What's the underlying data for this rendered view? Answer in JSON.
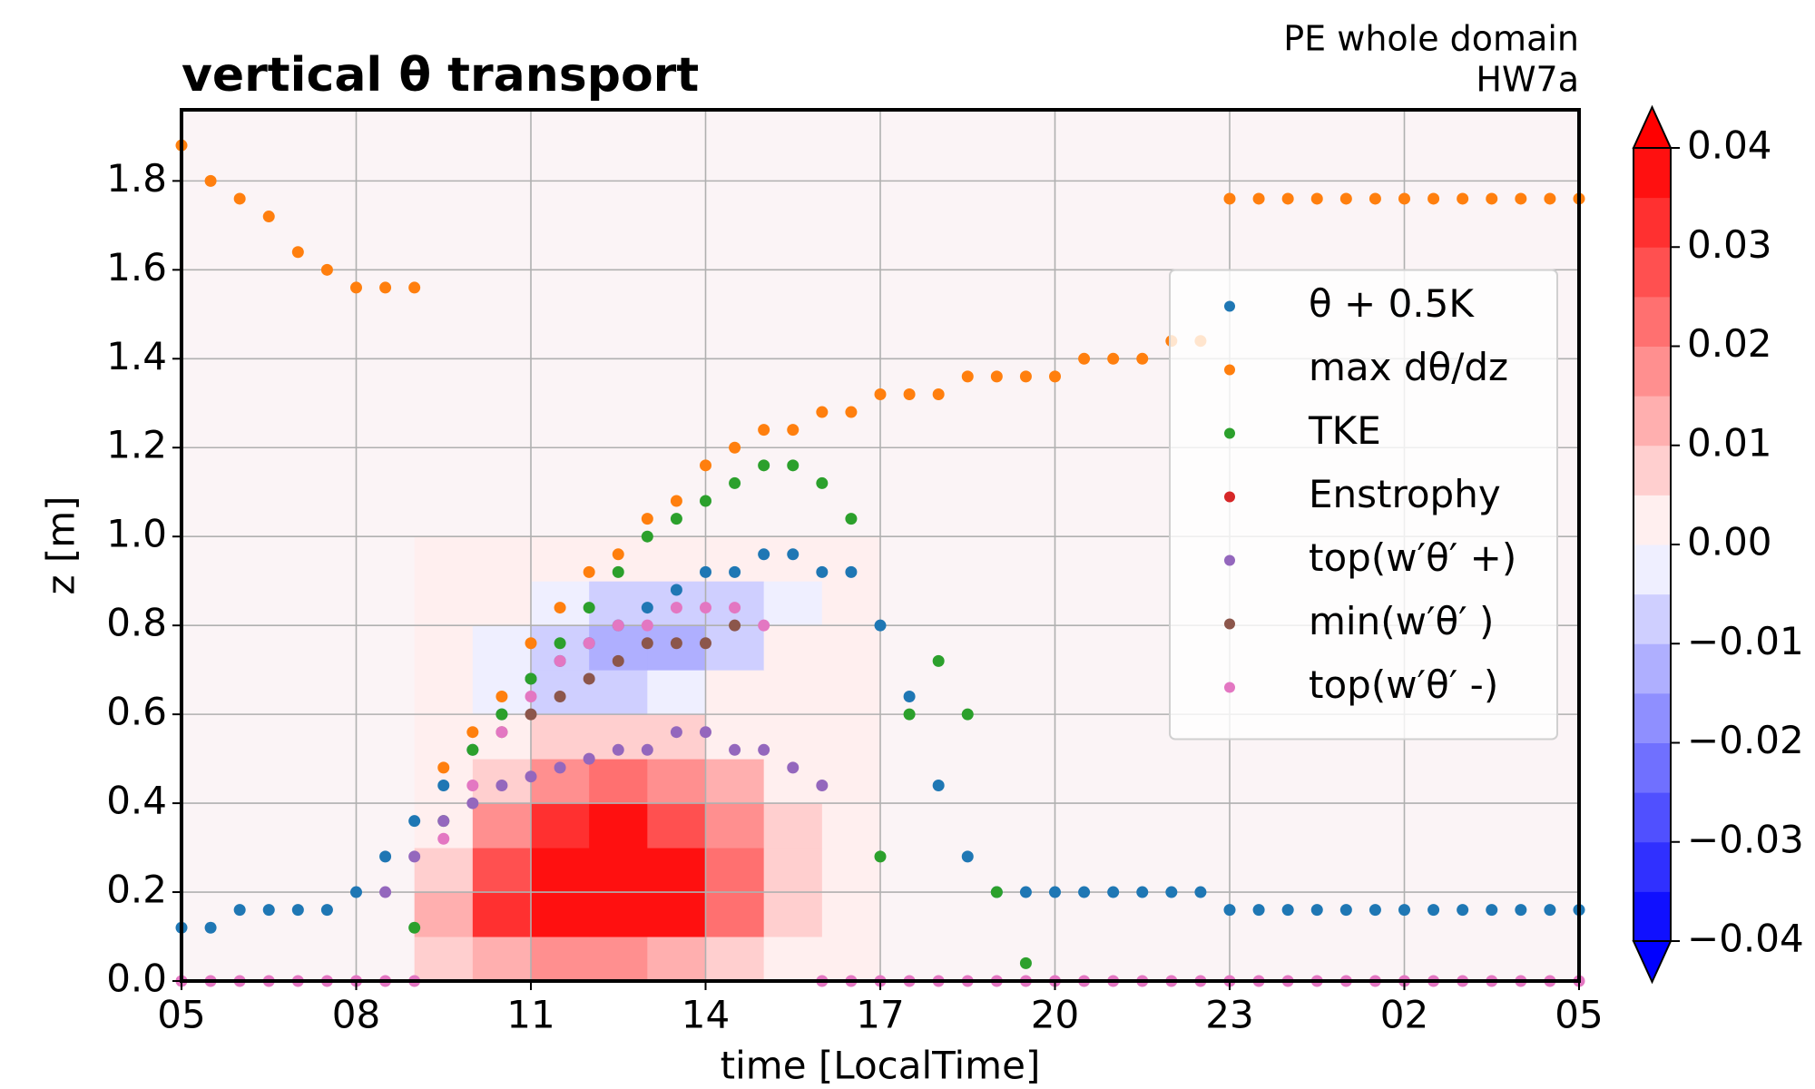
{
  "chart_data": {
    "type": "scatter",
    "title": "vertical θ transport",
    "subtitle": [
      "PE whole domain",
      "HW7a"
    ],
    "x_label": "time [LocalTime]",
    "y_label": "z [m]",
    "xlim": [
      5,
      29
    ],
    "ylim": [
      0,
      1.96
    ],
    "xticks": [
      {
        "value": 5,
        "label": "05"
      },
      {
        "value": 8,
        "label": "08"
      },
      11,
      14,
      17,
      20,
      23,
      {
        "value": 26,
        "label": "02"
      },
      {
        "value": 29,
        "label": "05"
      }
    ],
    "yticks": [
      {
        "value": 0,
        "label": "0.0"
      },
      0.2,
      0.4,
      0.6,
      0.8,
      {
        "value": 1,
        "label": "1.0"
      },
      1.2,
      1.4,
      1.6,
      1.8
    ],
    "grid": true,
    "legend": "center right",
    "x": [
      5,
      5.5,
      6,
      6.5,
      7,
      7.5,
      8,
      8.5,
      9,
      9.5,
      10,
      10.5,
      11,
      11.5,
      12,
      12.5,
      13,
      13.5,
      14,
      14.5,
      15,
      15.5,
      16,
      16.5,
      17,
      17.5,
      18,
      18.5,
      19,
      19.5,
      20,
      20.5,
      21,
      21.5,
      22,
      22.5,
      23,
      23.5,
      24,
      24.5,
      25,
      25.5,
      26,
      26.5,
      27,
      27.5,
      28,
      28.5,
      29
    ],
    "series": [
      {
        "name": "θ + 0.5K",
        "color": "#1f77b4",
        "values": [
          0.12,
          0.12,
          0.16,
          0.16,
          0.16,
          0.16,
          0.2,
          0.28,
          0.36,
          0.44,
          0.52,
          0.6,
          0.68,
          0.72,
          0.76,
          0.8,
          0.84,
          0.88,
          0.92,
          0.92,
          0.96,
          0.96,
          0.92,
          0.92,
          0.8,
          0.64,
          0.44,
          0.28,
          0.2,
          0.2,
          0.2,
          0.2,
          0.2,
          0.2,
          0.2,
          0.2,
          0.16,
          0.16,
          0.16,
          0.16,
          0.16,
          0.16,
          0.16,
          0.16,
          0.16,
          0.16,
          0.16,
          0.16,
          0.16
        ]
      },
      {
        "name": "max dθ/dz",
        "color": "#ff7f0e",
        "values": [
          1.88,
          1.8,
          1.76,
          1.72,
          1.64,
          1.6,
          1.56,
          1.56,
          1.56,
          0.48,
          0.56,
          0.64,
          0.76,
          0.84,
          0.92,
          0.96,
          1.04,
          1.08,
          1.16,
          1.2,
          1.24,
          1.24,
          1.28,
          1.28,
          1.32,
          1.32,
          1.32,
          1.36,
          1.36,
          1.36,
          1.36,
          1.4,
          1.4,
          1.4,
          1.44,
          1.44,
          1.76,
          1.76,
          1.76,
          1.76,
          1.76,
          1.76,
          1.76,
          1.76,
          1.76,
          1.76,
          1.76,
          1.76,
          1.76
        ]
      },
      {
        "name": "TKE",
        "color": "#2ca02c",
        "values": [
          null,
          null,
          null,
          null,
          null,
          null,
          null,
          null,
          0.12,
          0.36,
          0.52,
          0.6,
          0.68,
          0.76,
          0.84,
          0.92,
          1.0,
          1.04,
          1.08,
          1.12,
          1.16,
          1.16,
          1.12,
          1.04,
          0.28,
          0.6,
          0.72,
          0.6,
          0.2,
          0.04,
          null,
          null,
          null,
          null,
          null,
          null,
          null,
          null,
          null,
          null,
          null,
          null,
          null,
          null,
          null,
          null,
          null,
          null,
          null
        ]
      },
      {
        "name": "Enstrophy",
        "color": "#d62728",
        "values": [
          null,
          null,
          null,
          null,
          null,
          null,
          null,
          null,
          null,
          null,
          null,
          null,
          null,
          null,
          null,
          null,
          null,
          null,
          null,
          null,
          null,
          null,
          null,
          null,
          null,
          null,
          null,
          null,
          null,
          null,
          null,
          null,
          null,
          null,
          null,
          null,
          null,
          null,
          null,
          null,
          null,
          null,
          null,
          null,
          null,
          null,
          null,
          null,
          null
        ]
      },
      {
        "name": "top(w′θ′ +)",
        "color": "#9467bd",
        "values": [
          null,
          null,
          null,
          null,
          null,
          null,
          null,
          0.2,
          0.28,
          0.36,
          0.4,
          0.44,
          0.46,
          0.48,
          0.5,
          0.52,
          0.52,
          0.56,
          0.56,
          0.52,
          0.52,
          0.48,
          0.44,
          null,
          null,
          null,
          null,
          null,
          null,
          null,
          null,
          null,
          null,
          null,
          null,
          null,
          null,
          null,
          null,
          null,
          null,
          null,
          null,
          null,
          null,
          null,
          null,
          null,
          null
        ]
      },
      {
        "name": "min(w′θ′ )",
        "color": "#8c564b",
        "values": [
          null,
          null,
          null,
          null,
          null,
          null,
          null,
          null,
          null,
          null,
          null,
          0.56,
          0.6,
          0.64,
          0.68,
          0.72,
          0.76,
          0.76,
          0.76,
          0.8,
          null,
          null,
          null,
          null,
          null,
          null,
          null,
          null,
          null,
          null,
          null,
          null,
          null,
          null,
          null,
          null,
          null,
          null,
          null,
          null,
          null,
          null,
          null,
          null,
          null,
          null,
          null,
          null,
          null
        ]
      },
      {
        "name": "top(w′θ′ -)",
        "color": "#e377c2",
        "values": [
          0,
          0,
          0,
          0,
          0,
          0,
          0,
          0,
          0,
          0.32,
          0.44,
          0.56,
          0.64,
          0.72,
          0.76,
          0.8,
          0.8,
          0.84,
          0.84,
          0.84,
          0.8,
          null,
          0,
          0,
          0,
          0,
          0,
          0,
          0,
          0,
          0,
          0,
          0,
          0,
          0,
          0,
          0,
          0,
          0,
          0,
          0,
          0,
          0,
          0,
          0,
          0,
          0,
          0,
          0
        ]
      }
    ],
    "field": {
      "x_edges": [
        9,
        10,
        11,
        12,
        13,
        14,
        15,
        16,
        17
      ],
      "z_edges": [
        0,
        0.1,
        0.2,
        0.3,
        0.4,
        0.5,
        0.6,
        0.7,
        0.8,
        0.9,
        1.0
      ],
      "values": [
        [
          0.005,
          0.01,
          0.015,
          0.015,
          0.01,
          0.005,
          0,
          0
        ],
        [
          0.01,
          0.03,
          0.04,
          0.04,
          0.035,
          0.02,
          0.005,
          0
        ],
        [
          0.005,
          0.025,
          0.04,
          0.04,
          0.035,
          0.02,
          0.005,
          0
        ],
        [
          0,
          0.015,
          0.03,
          0.035,
          0.025,
          0.015,
          0.005,
          0
        ],
        [
          0,
          0.005,
          0.015,
          0.02,
          0.015,
          0.01,
          0,
          0
        ],
        [
          0,
          0,
          0.005,
          0.005,
          0.005,
          0,
          0,
          0
        ],
        [
          0,
          -0.005,
          -0.01,
          -0.01,
          -0.005,
          0,
          0,
          0
        ],
        [
          0,
          -0.005,
          -0.01,
          -0.015,
          -0.015,
          -0.01,
          0,
          0
        ],
        [
          0,
          0,
          -0.005,
          -0.01,
          -0.01,
          -0.01,
          -0.005,
          0
        ],
        [
          0,
          0,
          0,
          0,
          0,
          0,
          0,
          0
        ]
      ]
    },
    "colorbar": {
      "lim": [
        -0.04,
        0.04
      ],
      "cmap": [
        "#0000ff",
        "#ffffff",
        "#ff0000"
      ],
      "levels": [
        -0.04,
        -0.035,
        -0.03,
        -0.025,
        -0.02,
        -0.015,
        -0.01,
        -0.005,
        0,
        0.005,
        0.01,
        0.015,
        0.02,
        0.025,
        0.03,
        0.035,
        0.04
      ],
      "ticks": [
        0.04,
        0.03,
        0.02,
        0.01,
        {
          "value": 0,
          "label": "0.00"
        },
        {
          "value": -0.01,
          "label": "−0.01"
        },
        {
          "value": -0.02,
          "label": "−0.02"
        },
        {
          "value": -0.03,
          "label": "−0.03"
        },
        {
          "value": -0.04,
          "label": "−0.04"
        }
      ]
    }
  }
}
